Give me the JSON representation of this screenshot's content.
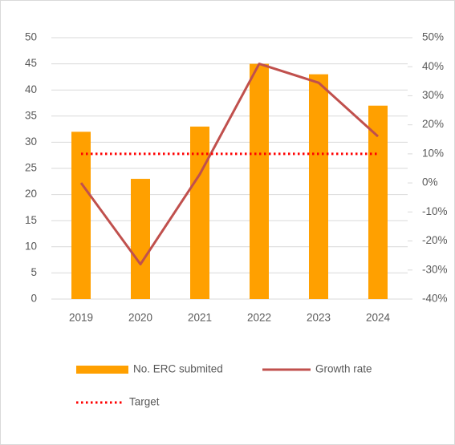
{
  "chart_data": {
    "type": "bar",
    "categories": [
      "2019",
      "2020",
      "2021",
      "2022",
      "2023",
      "2024"
    ],
    "series": [
      {
        "name": "No. ERC submited",
        "type": "bar",
        "color": "#ffa000",
        "values": [
          32,
          23,
          33,
          45,
          43,
          37
        ]
      },
      {
        "name": "Growth rate",
        "type": "line",
        "axis": "y2",
        "color": "#c0504d",
        "values": [
          0,
          -28,
          3,
          41,
          34.5,
          16
        ]
      },
      {
        "name": "Target",
        "type": "line",
        "axis": "y2",
        "color": "#ff0000",
        "dash": "dotted",
        "values": [
          10,
          10,
          10,
          10,
          10,
          10
        ]
      }
    ],
    "ylim": [
      0,
      50
    ],
    "yticks": [
      0,
      5,
      10,
      15,
      20,
      25,
      30,
      35,
      40,
      45,
      50
    ],
    "y2lim": [
      -40,
      50
    ],
    "y2ticks": [
      {
        "value": -40,
        "label": "-40%"
      },
      {
        "value": -30,
        "label": "-30%"
      },
      {
        "value": -20,
        "label": "-20%"
      },
      {
        "value": -10,
        "label": "-10%"
      },
      {
        "value": 0,
        "label": "0%"
      },
      {
        "value": 10,
        "label": "10%"
      },
      {
        "value": 20,
        "label": "20%"
      },
      {
        "value": 30,
        "label": "30%"
      },
      {
        "value": 40,
        "label": "40%"
      },
      {
        "value": 50,
        "label": "50%"
      }
    ],
    "grid": true,
    "legend": "bottom"
  }
}
